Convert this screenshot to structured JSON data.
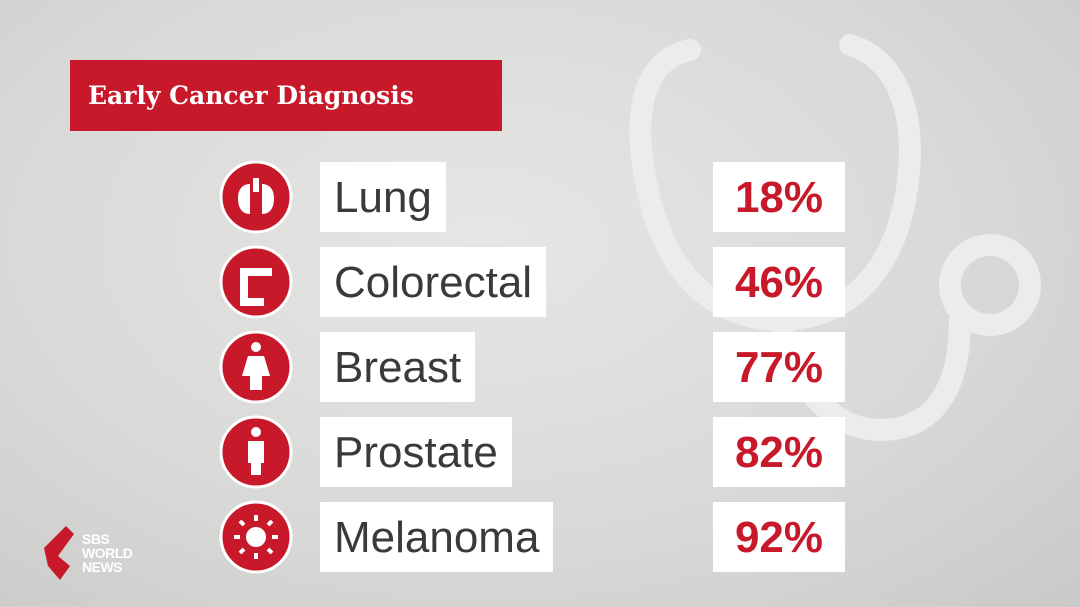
{
  "header": {
    "title": "Early Cancer Diagnosis"
  },
  "table": {
    "rows": [
      {
        "label": "Lung",
        "value": "18%"
      },
      {
        "label": "Colorectal",
        "value": "46%"
      },
      {
        "label": "Breast",
        "value": "77%"
      },
      {
        "label": "Prostate",
        "value": "82%"
      },
      {
        "label": "Melanoma",
        "value": "92%"
      }
    ]
  },
  "logo": {
    "lines": [
      "SBS",
      "WORLD",
      "NEWS"
    ]
  }
}
